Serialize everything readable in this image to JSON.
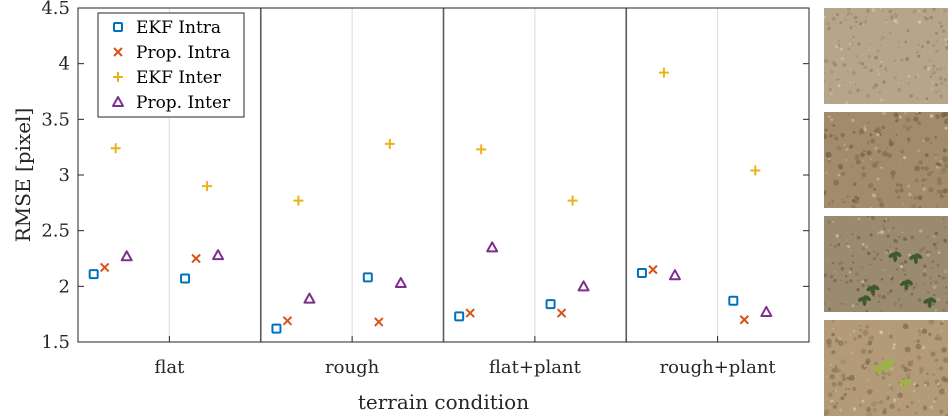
{
  "chart_data": {
    "type": "scatter",
    "xlabel": "terrain condition",
    "ylabel": "RMSE [pixel]",
    "ylim": [
      1.5,
      4.5
    ],
    "yticks": [
      1.5,
      2,
      2.5,
      3,
      3.5,
      4,
      4.5
    ],
    "ytick_labels": [
      "1.5",
      "2",
      "2.5",
      "3",
      "3.5",
      "4",
      "4.5"
    ],
    "categories": [
      "flat",
      "rough",
      "flat+plant",
      "rough+plant"
    ],
    "subgroups_per_category": 2,
    "grid": "vertical separators between categories and subgroups",
    "legend_position": "top-left",
    "series": [
      {
        "name": "EKF Intra",
        "marker": "square",
        "color": "#0072bd",
        "values": [
          [
            2.11,
            2.07
          ],
          [
            1.62,
            2.08
          ],
          [
            1.73,
            1.84
          ],
          [
            2.12,
            1.87
          ]
        ]
      },
      {
        "name": "Prop. Intra",
        "marker": "x",
        "color": "#d95319",
        "values": [
          [
            2.17,
            2.25
          ],
          [
            1.69,
            1.68
          ],
          [
            1.76,
            1.76
          ],
          [
            2.15,
            1.7
          ]
        ]
      },
      {
        "name": "EKF Inter",
        "marker": "plus",
        "color": "#edb120",
        "values": [
          [
            3.24,
            2.9
          ],
          [
            2.77,
            3.28
          ],
          [
            3.23,
            2.77
          ],
          [
            3.92,
            3.04
          ]
        ]
      },
      {
        "name": "Prop. Inter",
        "marker": "triangle",
        "color": "#7e2f8e",
        "values": [
          [
            2.27,
            2.28
          ],
          [
            1.89,
            2.03
          ],
          [
            2.35,
            2.0
          ],
          [
            2.1,
            1.77
          ]
        ]
      }
    ]
  },
  "thumbnails": [
    {
      "name": "flat-terrain-photo",
      "base": "#b5a58b",
      "speck": "#8a7a62",
      "plants": 0
    },
    {
      "name": "rough-terrain-photo",
      "base": "#a28b6b",
      "speck": "#6e5b43",
      "plants": 0
    },
    {
      "name": "flat-plant-terrain-photo",
      "base": "#9a8a70",
      "speck": "#6a5c48",
      "plants": 6
    },
    {
      "name": "rough-plant-terrain-photo",
      "base": "#b39b78",
      "speck": "#7f6a4f",
      "plants": 4
    }
  ]
}
